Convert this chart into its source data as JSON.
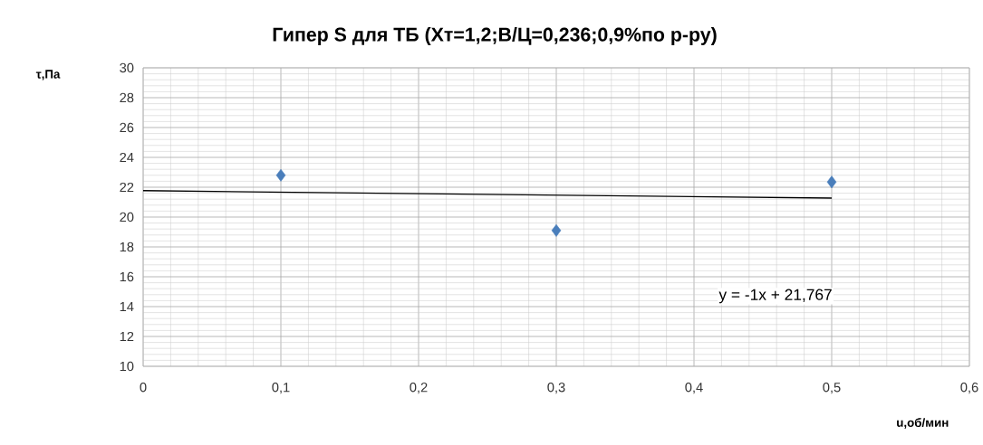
{
  "chart_data": {
    "type": "scatter",
    "title": "Гипер S для ТБ (Хт=1,2;В/Ц=0,236;0,9%по р-ру)",
    "xlabel": "u,об/мин",
    "ylabel": "τ,Па",
    "annotations": [
      "y = -1x + 21,767"
    ],
    "series": [
      {
        "color": "#4a7ebb",
        "marker": "diamond",
        "x": [
          0.1,
          0.3,
          0.5
        ],
        "values": [
          22.8,
          19.1,
          22.35
        ]
      },
      {
        "type": "line",
        "color": "#000000",
        "marker": "none",
        "x": [
          0,
          0.5
        ],
        "values": [
          21.77,
          21.27
        ]
      }
    ],
    "xlim": [
      0,
      0.6
    ],
    "ylim": [
      10,
      30
    ],
    "xticks": [
      0,
      {
        "value": 0.1,
        "label": "0,1"
      },
      {
        "value": 0.2,
        "label": "0,2"
      },
      {
        "value": 0.3,
        "label": "0,3"
      },
      {
        "value": 0.4,
        "label": "0,4"
      },
      {
        "value": 0.5,
        "label": "0,5"
      },
      {
        "value": 0.6,
        "label": "0,6"
      }
    ],
    "yticks": [
      10,
      12,
      14,
      16,
      18,
      20,
      22,
      24,
      26,
      28,
      30
    ],
    "grid": true
  }
}
